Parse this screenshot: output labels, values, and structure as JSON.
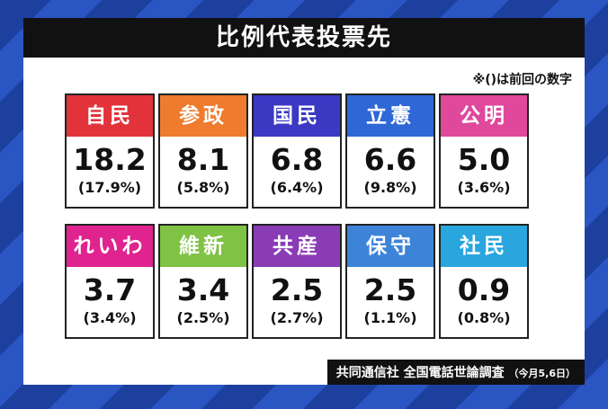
{
  "title": "比例代表投票先",
  "note": "※()は前回の数字",
  "parties": [
    {
      "name": "自民",
      "value": "18.2",
      "previous": "(17.9%)",
      "color": "#e2333b"
    },
    {
      "name": "参政",
      "value": "8.1",
      "previous": "(5.8%)",
      "color": "#ee7b2e"
    },
    {
      "name": "国民",
      "value": "6.8",
      "previous": "(6.4%)",
      "color": "#3b38c4"
    },
    {
      "name": "立憲",
      "value": "6.6",
      "previous": "(9.8%)",
      "color": "#2f68d6"
    },
    {
      "name": "公明",
      "value": "5.0",
      "previous": "(3.6%)",
      "color": "#e0489c"
    },
    {
      "name": "れいわ",
      "value": "3.7",
      "previous": "(3.4%)",
      "color": "#df2490"
    },
    {
      "name": "維新",
      "value": "3.4",
      "previous": "(2.5%)",
      "color": "#7fc244"
    },
    {
      "name": "共産",
      "value": "2.5",
      "previous": "(2.7%)",
      "color": "#8a3bb6"
    },
    {
      "name": "保守",
      "value": "2.5",
      "previous": "(1.1%)",
      "color": "#3d84d8"
    },
    {
      "name": "社民",
      "value": "0.9",
      "previous": "(0.8%)",
      "color": "#2aa6de"
    }
  ],
  "source": {
    "main": "共同通信社 全国電話世論調査",
    "date": "（今月5,6日）"
  }
}
